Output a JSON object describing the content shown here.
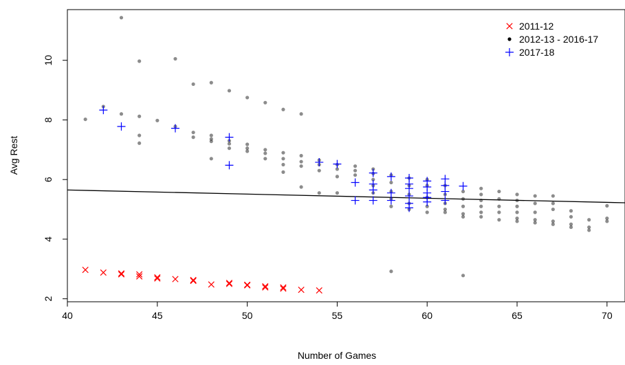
{
  "chart_data": {
    "type": "scatter",
    "xlabel": "Number of Games",
    "ylabel": "Avg Rest",
    "xlim": [
      40,
      71
    ],
    "ylim": [
      1.9,
      11.7
    ],
    "x_ticks": [
      40,
      45,
      50,
      55,
      60,
      65,
      70
    ],
    "y_ticks": [
      2,
      4,
      6,
      8,
      10
    ],
    "grid": false,
    "legend_position": "top-right",
    "trend_line": {
      "x": [
        40,
        71
      ],
      "y": [
        5.65,
        5.22
      ]
    },
    "series": [
      {
        "name": "2011-12",
        "marker": "x",
        "color": "#ff0000",
        "points": [
          [
            41,
            2.97
          ],
          [
            42,
            2.88
          ],
          [
            43,
            2.82
          ],
          [
            43,
            2.85
          ],
          [
            44,
            2.75
          ],
          [
            44,
            2.82
          ],
          [
            45,
            2.68
          ],
          [
            45,
            2.72
          ],
          [
            46,
            2.66
          ],
          [
            47,
            2.6
          ],
          [
            47,
            2.63
          ],
          [
            48,
            2.48
          ],
          [
            49,
            2.5
          ],
          [
            49,
            2.53
          ],
          [
            50,
            2.45
          ],
          [
            50,
            2.47
          ],
          [
            51,
            2.38
          ],
          [
            51,
            2.42
          ],
          [
            52,
            2.34
          ],
          [
            52,
            2.38
          ],
          [
            53,
            2.3
          ],
          [
            54,
            2.28
          ]
        ]
      },
      {
        "name": "2012-13 - 2016-17",
        "marker": "dot",
        "color": "#000000",
        "points": [
          [
            41,
            8.02
          ],
          [
            42,
            8.45
          ],
          [
            43,
            11.43
          ],
          [
            43,
            8.2
          ],
          [
            44,
            9.97
          ],
          [
            44,
            8.12
          ],
          [
            44,
            7.48
          ],
          [
            44,
            7.22
          ],
          [
            45,
            7.98
          ],
          [
            46,
            10.05
          ],
          [
            46,
            7.78
          ],
          [
            47,
            9.2
          ],
          [
            47,
            7.58
          ],
          [
            47,
            7.42
          ],
          [
            48,
            9.25
          ],
          [
            48,
            7.48
          ],
          [
            48,
            7.36
          ],
          [
            48,
            7.28
          ],
          [
            48,
            6.7
          ],
          [
            49,
            8.98
          ],
          [
            49,
            7.2
          ],
          [
            49,
            7.05
          ],
          [
            49,
            7.3
          ],
          [
            50,
            8.75
          ],
          [
            50,
            7.18
          ],
          [
            50,
            7.05
          ],
          [
            50,
            6.95
          ],
          [
            51,
            8.58
          ],
          [
            51,
            7.0
          ],
          [
            51,
            6.88
          ],
          [
            51,
            6.7
          ],
          [
            52,
            8.35
          ],
          [
            52,
            6.9
          ],
          [
            52,
            6.7
          ],
          [
            52,
            6.5
          ],
          [
            52,
            6.25
          ],
          [
            53,
            8.2
          ],
          [
            53,
            6.8
          ],
          [
            53,
            6.6
          ],
          [
            53,
            6.45
          ],
          [
            53,
            5.75
          ],
          [
            54,
            6.65
          ],
          [
            54,
            6.5
          ],
          [
            54,
            6.3
          ],
          [
            54,
            5.55
          ],
          [
            55,
            6.5
          ],
          [
            55,
            6.35
          ],
          [
            55,
            6.1
          ],
          [
            55,
            5.55
          ],
          [
            56,
            6.45
          ],
          [
            56,
            6.3
          ],
          [
            56,
            6.15
          ],
          [
            57,
            6.35
          ],
          [
            57,
            6.2
          ],
          [
            57,
            6.0
          ],
          [
            57,
            5.8
          ],
          [
            57,
            5.55
          ],
          [
            58,
            6.15
          ],
          [
            58,
            5.9
          ],
          [
            58,
            5.6
          ],
          [
            58,
            5.35
          ],
          [
            58,
            5.1
          ],
          [
            58,
            2.92
          ],
          [
            59,
            6.05
          ],
          [
            59,
            5.8
          ],
          [
            59,
            5.5
          ],
          [
            59,
            5.2
          ],
          [
            59,
            5.0
          ],
          [
            60,
            6.0
          ],
          [
            60,
            5.8
          ],
          [
            60,
            5.4
          ],
          [
            60,
            5.1
          ],
          [
            60,
            4.9
          ],
          [
            61,
            5.8
          ],
          [
            61,
            5.5
          ],
          [
            61,
            5.2
          ],
          [
            61,
            5.0
          ],
          [
            61,
            4.9
          ],
          [
            62,
            5.6
          ],
          [
            62,
            5.35
          ],
          [
            62,
            5.1
          ],
          [
            62,
            4.85
          ],
          [
            62,
            4.75
          ],
          [
            62,
            2.78
          ],
          [
            63,
            5.7
          ],
          [
            63,
            5.5
          ],
          [
            63,
            5.3
          ],
          [
            63,
            5.1
          ],
          [
            63,
            4.9
          ],
          [
            63,
            4.75
          ],
          [
            64,
            5.6
          ],
          [
            64,
            5.35
          ],
          [
            64,
            5.1
          ],
          [
            64,
            4.9
          ],
          [
            64,
            4.65
          ],
          [
            65,
            5.5
          ],
          [
            65,
            5.3
          ],
          [
            65,
            5.1
          ],
          [
            65,
            4.9
          ],
          [
            65,
            4.7
          ],
          [
            65,
            4.6
          ],
          [
            66,
            5.45
          ],
          [
            66,
            5.2
          ],
          [
            66,
            4.9
          ],
          [
            66,
            4.65
          ],
          [
            66,
            4.55
          ],
          [
            67,
            5.45
          ],
          [
            67,
            5.2
          ],
          [
            67,
            5.0
          ],
          [
            67,
            4.6
          ],
          [
            67,
            4.5
          ],
          [
            68,
            4.95
          ],
          [
            68,
            4.75
          ],
          [
            68,
            4.5
          ],
          [
            68,
            4.4
          ],
          [
            69,
            4.65
          ],
          [
            69,
            4.4
          ],
          [
            69,
            4.3
          ],
          [
            70,
            5.12
          ],
          [
            70,
            4.7
          ],
          [
            70,
            4.6
          ]
        ]
      },
      {
        "name": "2017-18",
        "marker": "plus",
        "color": "#0000ff",
        "points": [
          [
            42,
            8.33
          ],
          [
            43,
            7.78
          ],
          [
            46,
            7.72
          ],
          [
            49,
            7.42
          ],
          [
            49,
            6.48
          ],
          [
            54,
            6.58
          ],
          [
            55,
            6.52
          ],
          [
            56,
            5.9
          ],
          [
            56,
            5.3
          ],
          [
            57,
            6.22
          ],
          [
            57,
            5.85
          ],
          [
            57,
            5.65
          ],
          [
            57,
            5.3
          ],
          [
            58,
            6.1
          ],
          [
            58,
            5.55
          ],
          [
            58,
            5.3
          ],
          [
            59,
            6.05
          ],
          [
            59,
            5.85
          ],
          [
            59,
            5.7
          ],
          [
            59,
            5.45
          ],
          [
            59,
            5.2
          ],
          [
            59,
            5.05
          ],
          [
            60,
            5.95
          ],
          [
            60,
            5.75
          ],
          [
            60,
            5.55
          ],
          [
            60,
            5.4
          ],
          [
            60,
            5.25
          ],
          [
            61,
            6.02
          ],
          [
            61,
            5.8
          ],
          [
            61,
            5.6
          ],
          [
            61,
            5.3
          ],
          [
            62,
            5.78
          ]
        ]
      }
    ]
  }
}
